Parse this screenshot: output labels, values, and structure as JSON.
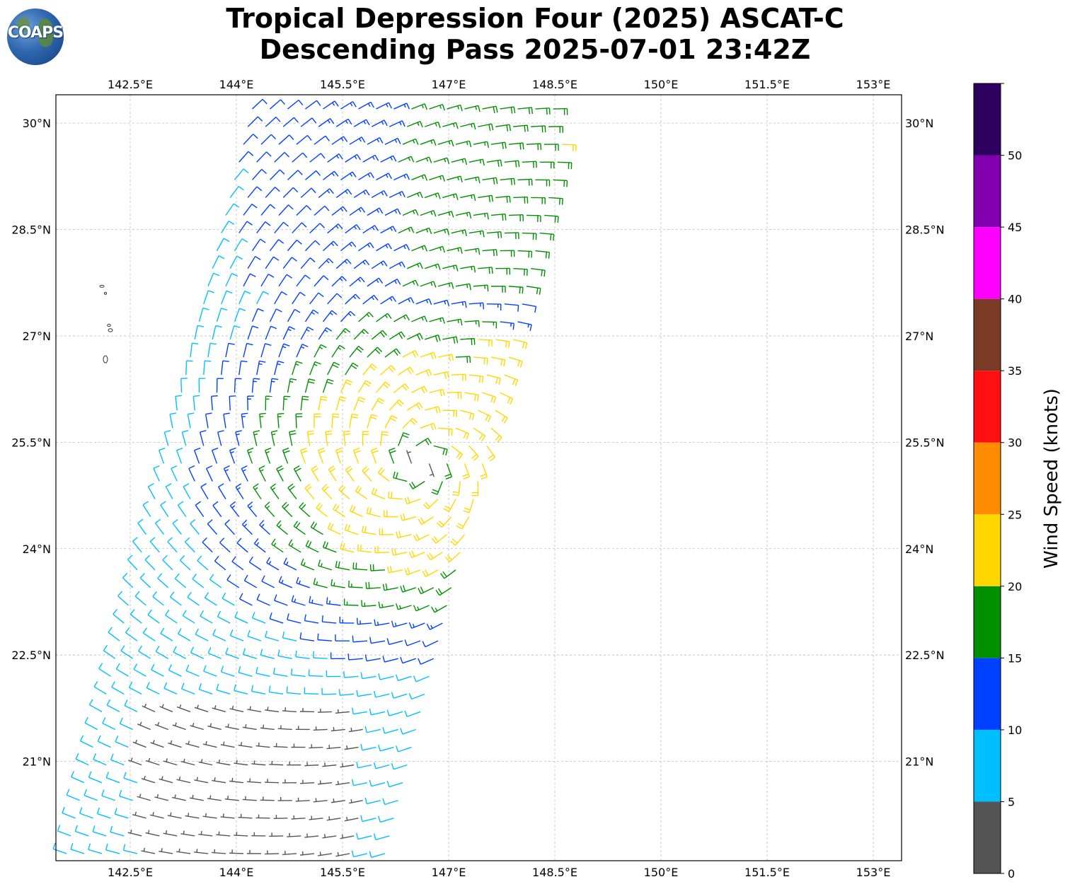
{
  "header": {
    "title": "Tropical Depression Four (2025) ASCAT-C\nDescending Pass 2025-07-01 23:42Z",
    "logo_text": "COAPS"
  },
  "chart_data": {
    "type": "wind-barb map",
    "title": "Tropical Depression Four (2025) ASCAT-C\nDescending Pass 2025-07-01 23:42Z",
    "xlim": [
      141.45,
      153.4
    ],
    "ylim": [
      19.6,
      30.4
    ],
    "x_ticks": [
      142.5,
      144,
      145.5,
      147,
      148.5,
      150,
      151.5,
      153
    ],
    "x_tick_labels": [
      "142.5°E",
      "144°E",
      "145.5°E",
      "147°E",
      "148.5°E",
      "150°E",
      "151.5°E",
      "153°E"
    ],
    "y_ticks": [
      21,
      22.5,
      24,
      25.5,
      27,
      28.5,
      30
    ],
    "y_tick_labels": [
      "21°N",
      "22.5°N",
      "24°N",
      "25.5°N",
      "27°N",
      "28.5°N",
      "30°N"
    ],
    "grid": true,
    "circulation_center": [
      146.6,
      25.2
    ],
    "colorbar": {
      "label": "Wind Speed (knots)",
      "bounds": [
        0,
        5,
        10,
        15,
        20,
        25,
        30,
        35,
        40,
        45,
        50,
        55
      ],
      "tick_labels": [
        "0",
        "5",
        "10",
        "15",
        "20",
        "25",
        "30",
        "35",
        "40",
        "45",
        "50"
      ],
      "colors": [
        "#555555",
        "#00bfff",
        "#0040ff",
        "#009000",
        "#ffd700",
        "#ff8c00",
        "#ff1010",
        "#7b3a26",
        "#ff00ff",
        "#8000b0",
        "#2d0060"
      ]
    }
  }
}
